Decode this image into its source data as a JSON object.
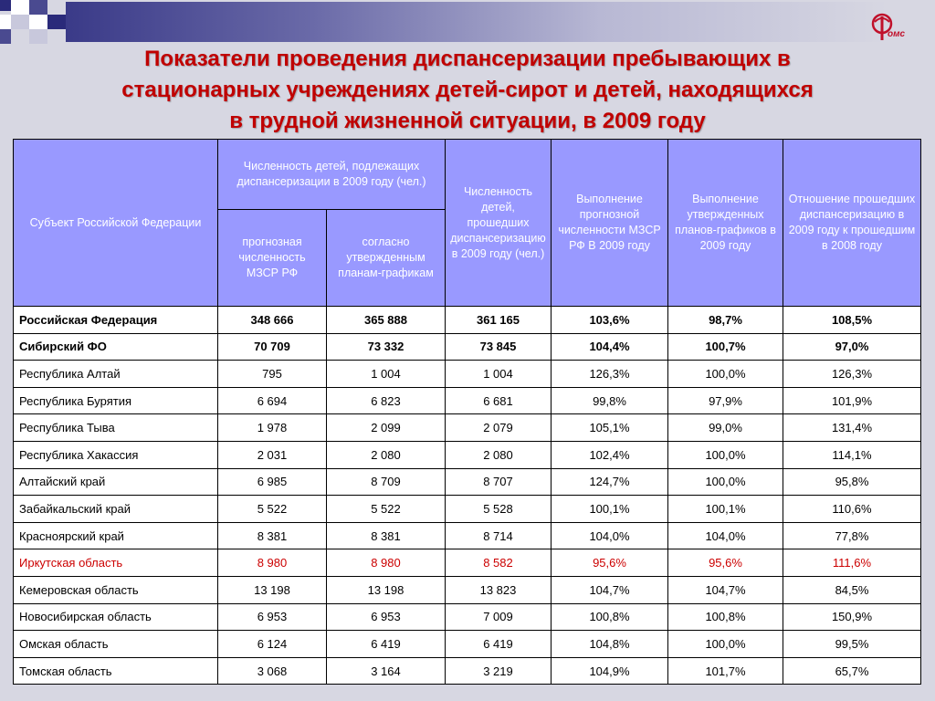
{
  "title_lines": [
    "Показатели проведения диспансеризации пребывающих в",
    "стационарных учреждениях детей-сирот и детей, находящихся",
    "в трудной жизненной ситуации, в 2009 году"
  ],
  "logo": {
    "text": "омс"
  },
  "colors": {
    "title": "#c00000",
    "header_bg": "#9999ff",
    "highlight": "#cc0000"
  },
  "headers": {
    "subject": "Субъект Российской Федерации",
    "group_planned": "Численность детей, подлежащих диспансеризации в 2009 году (чел.)",
    "forecast": "прогнозная численность МЗСР РФ",
    "by_plans": "согласно утвержденным планам-графикам",
    "passed": "Численность детей, прошедших диспансеризацию в 2009 году (чел.)",
    "exec_forecast": "Выполнение прогнозной численности МЗСР РФ В 2009 году",
    "exec_plans": "Выполнение утвержденных планов-графиков в 2009 году",
    "ratio": "Отношение прошедших диспансеризацию в 2009 году к прошедшим в 2008 году"
  },
  "rows": [
    {
      "name": "Российская Федерация",
      "forecast": "348 666",
      "plan": "365 888",
      "passed": "361 165",
      "exec_forecast": "103,6%",
      "exec_plan": "98,7%",
      "ratio": "108,5%",
      "style": "bold"
    },
    {
      "name": "Сибирский ФО",
      "forecast": "70 709",
      "plan": "73 332",
      "passed": "73 845",
      "exec_forecast": "104,4%",
      "exec_plan": "100,7%",
      "ratio": "97,0%",
      "style": "bold"
    },
    {
      "name": "Республика Алтай",
      "forecast": "795",
      "plan": "1 004",
      "passed": "1 004",
      "exec_forecast": "126,3%",
      "exec_plan": "100,0%",
      "ratio": "126,3%",
      "style": ""
    },
    {
      "name": "Республика Бурятия",
      "forecast": "6 694",
      "plan": "6 823",
      "passed": "6 681",
      "exec_forecast": "99,8%",
      "exec_plan": "97,9%",
      "ratio": "101,9%",
      "style": ""
    },
    {
      "name": "Республика Тыва",
      "forecast": "1 978",
      "plan": "2 099",
      "passed": "2 079",
      "exec_forecast": "105,1%",
      "exec_plan": "99,0%",
      "ratio": "131,4%",
      "style": ""
    },
    {
      "name": "Республика Хакассия",
      "forecast": "2 031",
      "plan": "2 080",
      "passed": "2 080",
      "exec_forecast": "102,4%",
      "exec_plan": "100,0%",
      "ratio": "114,1%",
      "style": ""
    },
    {
      "name": "Алтайский край",
      "forecast": "6 985",
      "plan": "8 709",
      "passed": "8 707",
      "exec_forecast": "124,7%",
      "exec_plan": "100,0%",
      "ratio": "95,8%",
      "style": ""
    },
    {
      "name": "Забайкальский край",
      "forecast": "5 522",
      "plan": "5 522",
      "passed": "5 528",
      "exec_forecast": "100,1%",
      "exec_plan": "100,1%",
      "ratio": "110,6%",
      "style": ""
    },
    {
      "name": "Красноярский край",
      "forecast": "8 381",
      "plan": "8 381",
      "passed": "8 714",
      "exec_forecast": "104,0%",
      "exec_plan": "104,0%",
      "ratio": "77,8%",
      "style": ""
    },
    {
      "name": "Иркутская область",
      "forecast": "8 980",
      "plan": "8 980",
      "passed": "8 582",
      "exec_forecast": "95,6%",
      "exec_plan": "95,6%",
      "ratio": "111,6%",
      "style": "red"
    },
    {
      "name": "Кемеровская область",
      "forecast": "13 198",
      "plan": "13 198",
      "passed": "13 823",
      "exec_forecast": "104,7%",
      "exec_plan": "104,7%",
      "ratio": "84,5%",
      "style": ""
    },
    {
      "name": "Новосибирская область",
      "forecast": "6 953",
      "plan": "6 953",
      "passed": "7 009",
      "exec_forecast": "100,8%",
      "exec_plan": "100,8%",
      "ratio": "150,9%",
      "style": ""
    },
    {
      "name": "Омская область",
      "forecast": "6 124",
      "plan": "6 419",
      "passed": "6 419",
      "exec_forecast": "104,8%",
      "exec_plan": "100,0%",
      "ratio": "99,5%",
      "style": ""
    },
    {
      "name": "Томская область",
      "forecast": "3 068",
      "plan": "3 164",
      "passed": "3 219",
      "exec_forecast": "104,9%",
      "exec_plan": "101,7%",
      "ratio": "65,7%",
      "style": ""
    }
  ]
}
